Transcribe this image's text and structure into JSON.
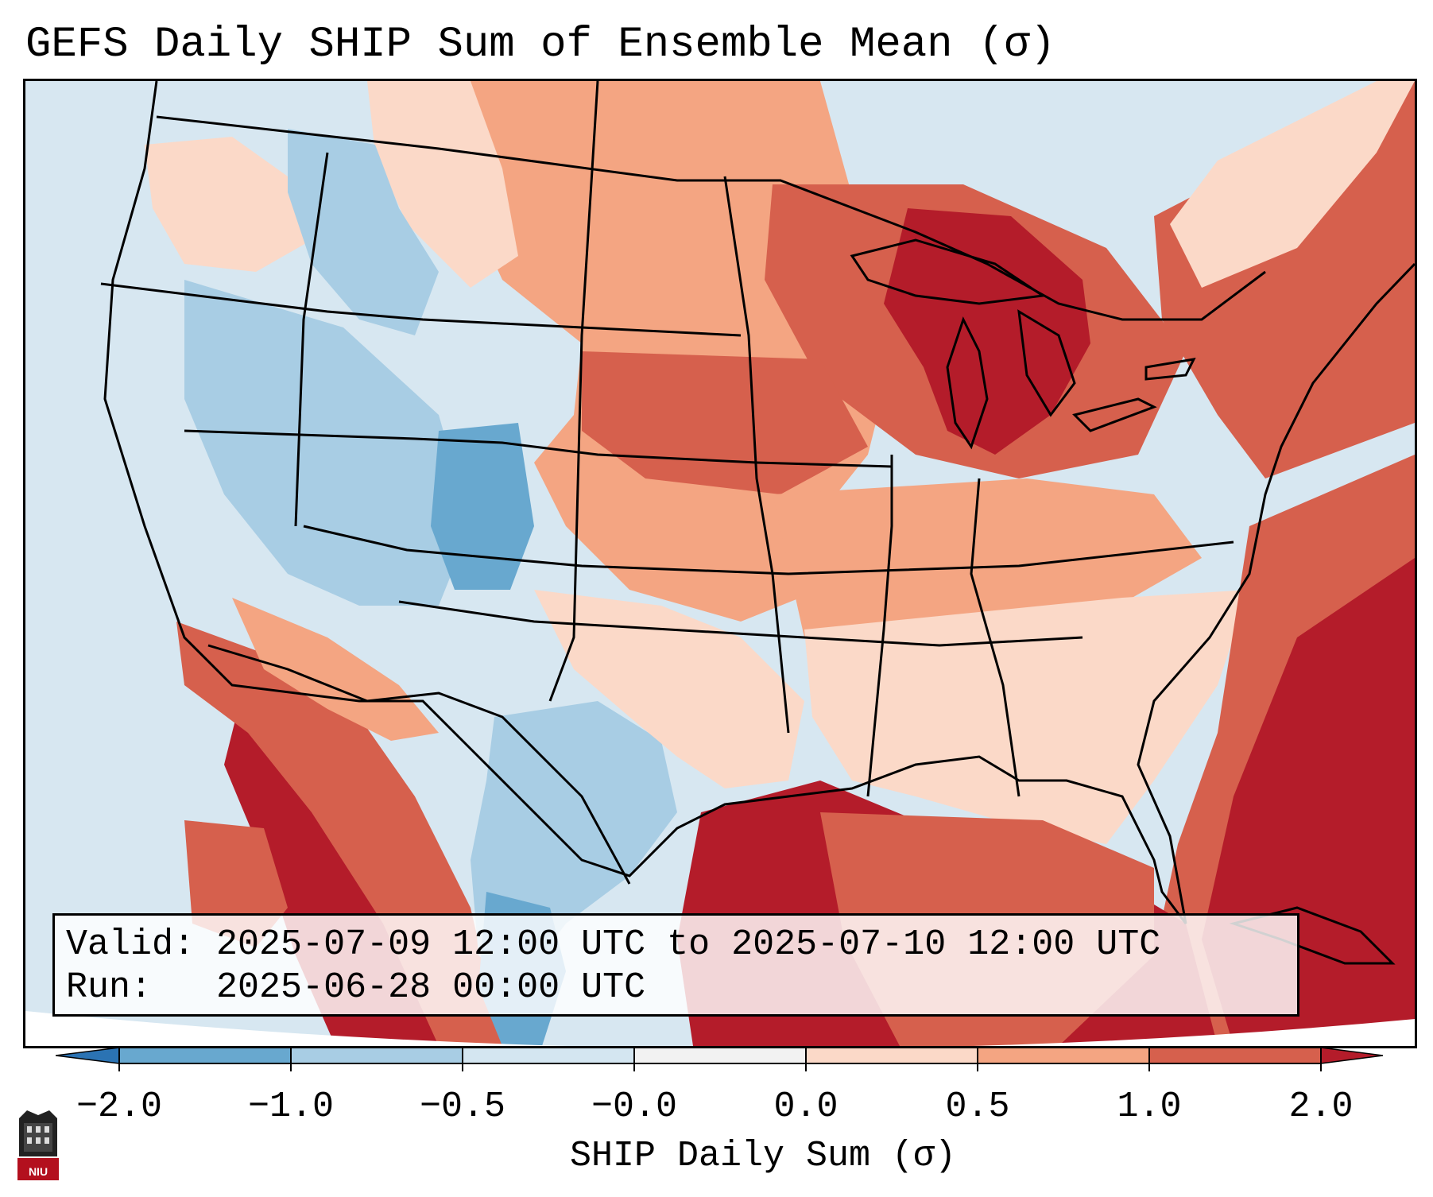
{
  "title": "GEFS Daily SHIP Sum of Ensemble Mean (σ)",
  "info": {
    "valid_label": "Valid:",
    "valid_value": "2025-07-09 12:00 UTC to 2025-07-10 12:00 UTC",
    "run_label": "Run:",
    "run_value": "2025-06-28 00:00 UTC"
  },
  "colorbar": {
    "label": "SHIP Daily Sum (σ)",
    "ticks": [
      "−2.0",
      "−1.0",
      "−0.5",
      "−0.0",
      "0.0",
      "0.5",
      "1.0",
      "2.0"
    ],
    "colors": [
      "#2b73b3",
      "#68a8cf",
      "#a8cde4",
      "#d4e6f1",
      "#f2f2f2",
      "#fbd9c8",
      "#f4a582",
      "#d6604d",
      "#b41c2a"
    ]
  },
  "map": {
    "region": "Contiguous United States",
    "background_color": "#d7e7f1"
  },
  "logo": {
    "text": "NIU",
    "color": "#b3101e"
  }
}
